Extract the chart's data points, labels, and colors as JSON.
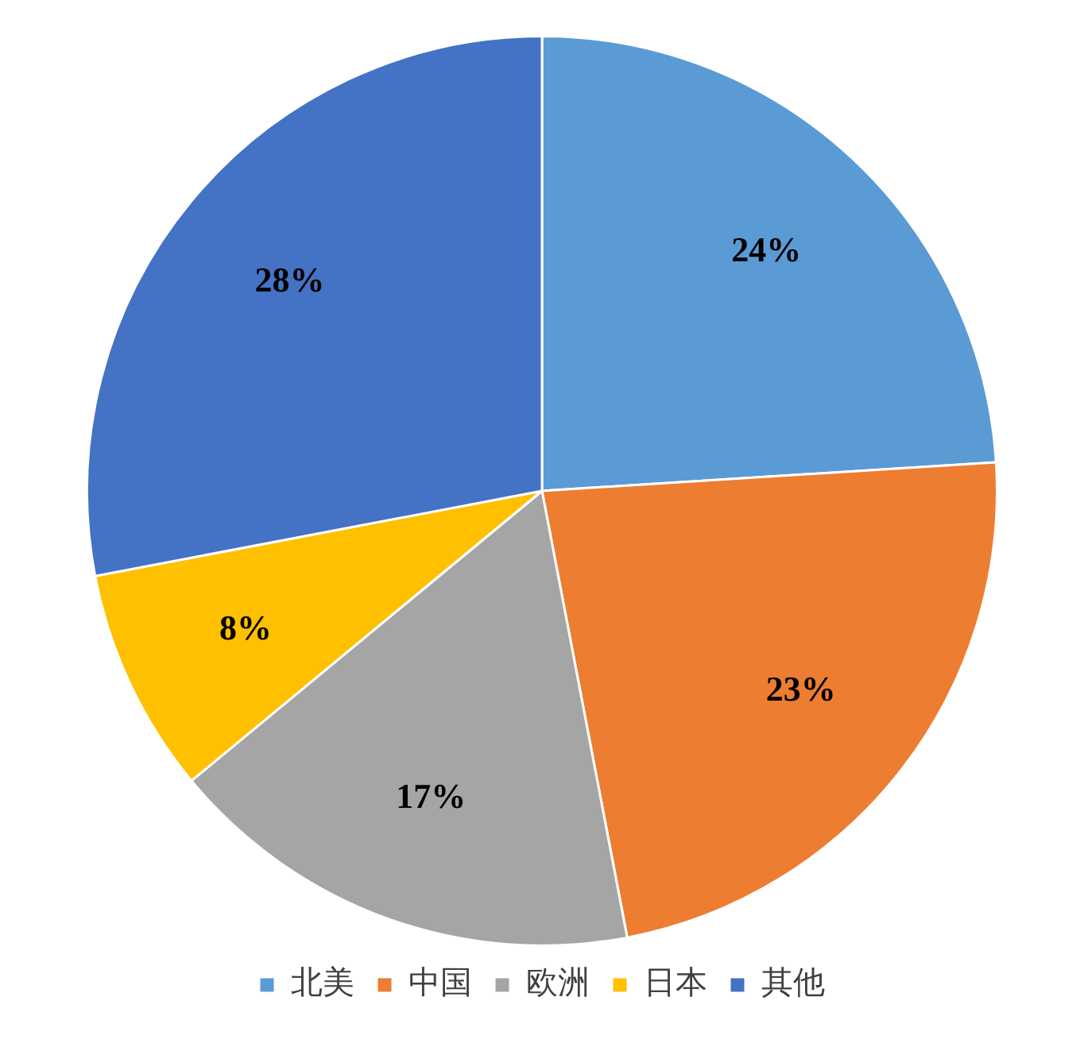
{
  "chart_data": {
    "type": "pie",
    "categories": [
      "北美",
      "中国",
      "欧洲",
      "日本",
      "其他"
    ],
    "values": [
      24,
      23,
      17,
      8,
      28
    ],
    "colors": [
      "#5b9bd5",
      "#ed7d31",
      "#a5a5a5",
      "#ffc000",
      "#4472c4"
    ],
    "value_labels": [
      "24%",
      "23%",
      "17%",
      "8%",
      "28%"
    ],
    "legend": "bottom"
  }
}
